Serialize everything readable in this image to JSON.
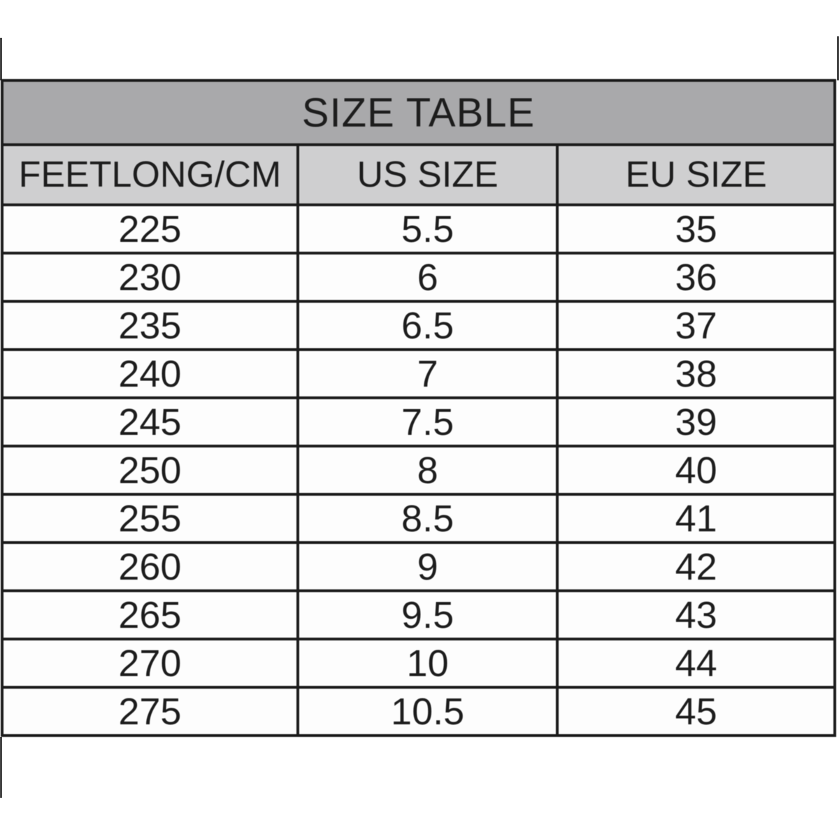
{
  "colors": {
    "title_band": "#a9a9ab",
    "header_band": "#cfcfd0",
    "border": "#1c1c1c",
    "text": "#1d1d1d",
    "frame": "#454545"
  },
  "table": {
    "title": "SIZE TABLE",
    "headers": [
      "FEETLONG/CM",
      "US SIZE",
      "EU SIZE"
    ],
    "rows": [
      {
        "feet": "225",
        "us": "5.5",
        "eu": "35"
      },
      {
        "feet": "230",
        "us": "6",
        "eu": "36"
      },
      {
        "feet": "235",
        "us": "6.5",
        "eu": "37"
      },
      {
        "feet": "240",
        "us": "7",
        "eu": "38"
      },
      {
        "feet": "245",
        "us": "7.5",
        "eu": "39"
      },
      {
        "feet": "250",
        "us": "8",
        "eu": "40"
      },
      {
        "feet": "255",
        "us": "8.5",
        "eu": "41"
      },
      {
        "feet": "260",
        "us": "9",
        "eu": "42"
      },
      {
        "feet": "265",
        "us": "9.5",
        "eu": "43"
      },
      {
        "feet": "270",
        "us": "10",
        "eu": "44"
      },
      {
        "feet": "275",
        "us": "10.5",
        "eu": "45"
      }
    ]
  },
  "chart_data": {
    "type": "table",
    "title": "SIZE TABLE",
    "columns": [
      "FEETLONG/CM",
      "US SIZE",
      "EU SIZE"
    ],
    "rows": [
      [
        225,
        5.5,
        35
      ],
      [
        230,
        6,
        36
      ],
      [
        235,
        6.5,
        37
      ],
      [
        240,
        7,
        38
      ],
      [
        245,
        7.5,
        39
      ],
      [
        250,
        8,
        40
      ],
      [
        255,
        8.5,
        41
      ],
      [
        260,
        9,
        42
      ],
      [
        265,
        9.5,
        43
      ],
      [
        270,
        10,
        44
      ],
      [
        275,
        10.5,
        45
      ]
    ]
  }
}
